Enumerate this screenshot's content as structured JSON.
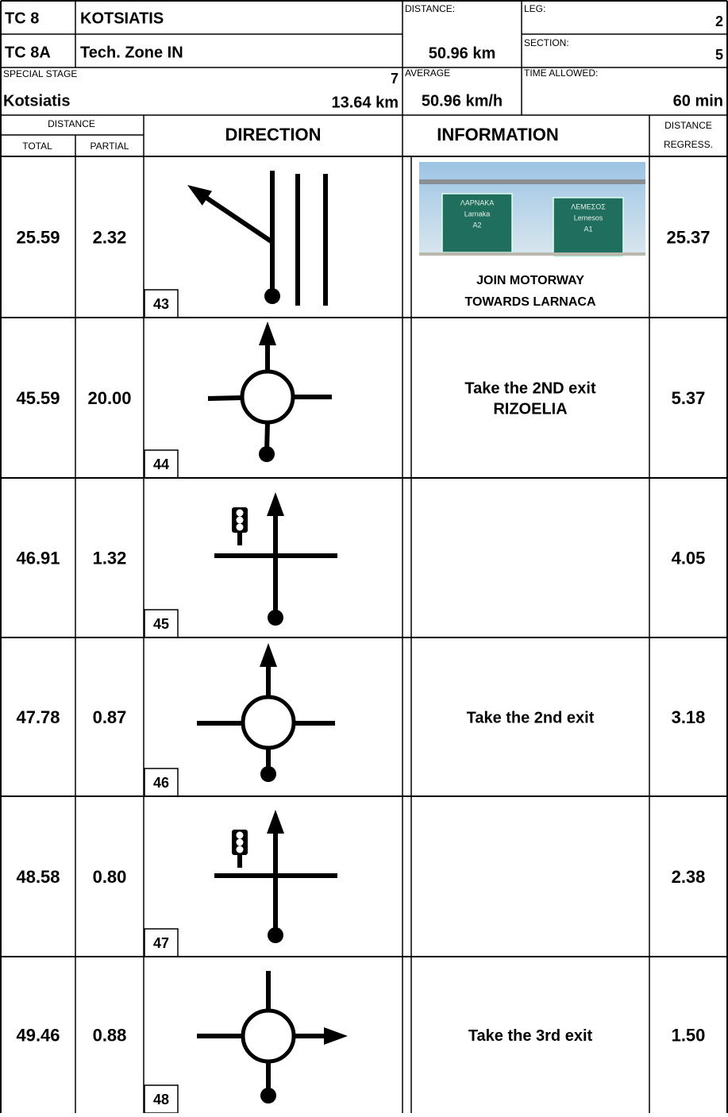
{
  "header": {
    "tc": "TC 8",
    "tc_name": "KOTSIATIS",
    "tc2": "TC 8A",
    "tc2_name": "Tech. Zone IN",
    "distance_label": "DISTANCE:",
    "distance": "50.96 km",
    "leg_label": "LEG:",
    "leg": "2",
    "section_label": "SECTION:",
    "section": "5",
    "special_stage_label": "SPECIAL STAGE",
    "special_stage": "7",
    "stage_name": "Kotsiatis",
    "stage_length": "13.64 km",
    "average_label": "AVERAGE",
    "average": "50.96 km/h",
    "time_allowed_label": "TIME ALLOWED:",
    "time_allowed": "60 min"
  },
  "columns": {
    "distance": "DISTANCE",
    "total": "TOTAL",
    "partial": "PARTIAL",
    "direction": "DIRECTION",
    "information": "INFORMATION",
    "regress": [
      "DISTANCE",
      "REGRESS."
    ]
  },
  "rows": [
    {
      "total": "25.59",
      "partial": "2.32",
      "number": "43",
      "info": [
        "JOIN MOTORWAY",
        "TOWARDS LARNACA"
      ],
      "regress": "25.37",
      "photo": {
        "left": [
          "ΛΑΡΝΑΚΑ",
          "Larnaka",
          "A2"
        ],
        "right": [
          "ΛΕΜΕΣΟΣ",
          "Lemesos",
          "A1"
        ]
      }
    },
    {
      "total": "45.59",
      "partial": "20.00",
      "number": "44",
      "info": [
        "Take the 2ND exit",
        "RIZOELIA"
      ],
      "regress": "5.37"
    },
    {
      "total": "46.91",
      "partial": "1.32",
      "number": "45",
      "regress": "4.05"
    },
    {
      "total": "47.78",
      "partial": "0.87",
      "number": "46",
      "info": [
        "Take the 2nd exit"
      ],
      "regress": "3.18"
    },
    {
      "total": "48.58",
      "partial": "0.80",
      "number": "47",
      "regress": "2.38"
    },
    {
      "total": "49.46",
      "partial": "0.88",
      "number": "48",
      "info": [
        "Take the 3rd exit"
      ],
      "regress": "1.50"
    }
  ]
}
